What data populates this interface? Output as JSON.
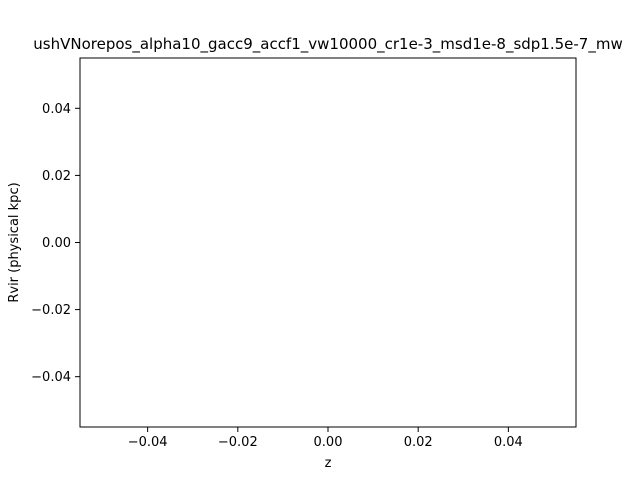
{
  "chart_data": {
    "type": "line",
    "title": "ushVNorepos_alpha10_gacc9_accf1_vw10000_cr1e-3_msd1e-8_sdp1.5e-7_mw",
    "xlabel": "z",
    "ylabel": "Rvir (physical kpc)",
    "xlim": [
      -0.055,
      0.055
    ],
    "ylim": [
      -0.055,
      0.055
    ],
    "xticks": [
      -0.04,
      -0.02,
      0.0,
      0.02,
      0.04
    ],
    "xtick_labels": [
      "−0.04",
      "−0.02",
      "0.00",
      "0.02",
      "0.04"
    ],
    "yticks": [
      -0.04,
      -0.02,
      0.0,
      0.02,
      0.04
    ],
    "ytick_labels": [
      "−0.04",
      "−0.02",
      "0.00",
      "0.02",
      "0.04"
    ],
    "grid": false,
    "series": [],
    "colors": {
      "axes": "#000000",
      "background": "#ffffff"
    }
  }
}
